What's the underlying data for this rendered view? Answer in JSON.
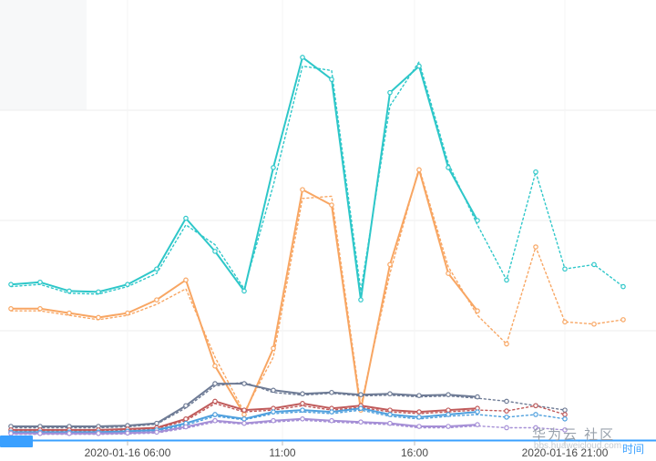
{
  "chart_data": {
    "type": "line",
    "title": "",
    "xlabel": "时间",
    "ylabel": "",
    "grid": true,
    "legend_visible": false,
    "x_axis": {
      "date": "2020-01-16",
      "ticks": [
        {
          "hour": 6,
          "label": "2020-01-16 06:00"
        },
        {
          "hour": 11,
          "label": "11:00"
        },
        {
          "hour": 16,
          "label": "16:00"
        },
        {
          "hour": 21,
          "label": "2020-01-16 21:00"
        }
      ]
    },
    "y_axis": {
      "range": [
        0,
        100
      ],
      "labels_visible": false
    },
    "x_sets": {
      "actual": [
        2,
        3,
        4,
        5,
        6,
        7,
        8,
        9,
        10,
        11,
        12,
        13,
        14,
        15,
        16,
        17,
        18
      ],
      "forecast": [
        2,
        3,
        4,
        5,
        6,
        7,
        8,
        9,
        10,
        11,
        12,
        13,
        14,
        15,
        16,
        17,
        18,
        19,
        20,
        21,
        22,
        23
      ],
      "forecast_short": [
        2,
        3,
        4,
        5,
        6,
        7,
        8,
        9,
        10,
        11,
        12,
        13,
        14,
        15,
        16,
        17,
        18,
        19,
        20,
        21
      ]
    },
    "series": [
      {
        "id": "teal_dotted",
        "color": "#2ec7c9",
        "style": "dotted",
        "x_set": "forecast",
        "markers": true,
        "markers_from_hour": 18.5,
        "values": [
          35,
          35.5,
          33.5,
          33.3,
          35,
          38,
          49,
          44.5,
          34.5,
          58,
          85,
          84,
          34,
          76,
          86,
          63,
          49,
          36.5,
          61,
          39,
          40,
          35
        ]
      },
      {
        "id": "teal_solid",
        "color": "#2ec7c9",
        "style": "solid",
        "x_set": "actual",
        "markers": true,
        "values": [
          35.5,
          36,
          34,
          33.8,
          35.5,
          39,
          50.5,
          43,
          34,
          62,
          87,
          82,
          32,
          79,
          85,
          62,
          50
        ]
      },
      {
        "id": "orange_dotted",
        "color": "#f8a663",
        "style": "dotted",
        "x_set": "forecast",
        "markers": true,
        "markers_from_hour": 18.5,
        "values": [
          29.5,
          29.5,
          28.5,
          27.5,
          28.5,
          31,
          34.5,
          19,
          6.5,
          19,
          55,
          55.5,
          8,
          38,
          62,
          39.5,
          28.5,
          22,
          44,
          27,
          26.5,
          27.5
        ]
      },
      {
        "id": "orange_solid",
        "color": "#f8a663",
        "style": "solid",
        "x_set": "actual",
        "markers": true,
        "values": [
          30,
          30,
          29,
          28,
          29,
          32,
          36.5,
          17,
          6,
          21,
          57,
          53.5,
          7,
          40,
          61.5,
          38,
          29.5
        ]
      },
      {
        "id": "slate_dotted",
        "color": "#6e7b95",
        "style": "dotted",
        "x_set": "forecast_short",
        "markers": true,
        "markers_from_hour": 18.5,
        "values": [
          3,
          3,
          3,
          3,
          3.2,
          3.8,
          7.5,
          12.5,
          13.3,
          11,
          10.4,
          10.8,
          10.2,
          10.4,
          10,
          10.2,
          9.7,
          9,
          8,
          7
        ]
      },
      {
        "id": "slate_solid",
        "color": "#6e7b95",
        "style": "solid",
        "x_set": "actual",
        "markers": true,
        "values": [
          3.3,
          3.3,
          3.3,
          3.3,
          3.5,
          4,
          8,
          13,
          13,
          11.5,
          10.7,
          11,
          10.5,
          10.7,
          10.3,
          10.5,
          10
        ]
      },
      {
        "id": "red_dotted",
        "color": "#c05a5a",
        "style": "dotted",
        "x_set": "forecast_short",
        "markers": true,
        "markers_from_hour": 18.5,
        "values": [
          2.3,
          2.3,
          2.3,
          2.3,
          2.5,
          2.8,
          4.6,
          8.5,
          6.6,
          7,
          8,
          7,
          7.6,
          6.6,
          6.2,
          6.6,
          7,
          6.8,
          8,
          6
        ]
      },
      {
        "id": "red_solid",
        "color": "#c05a5a",
        "style": "solid",
        "x_set": "actual",
        "markers": true,
        "values": [
          2.5,
          2.5,
          2.5,
          2.5,
          2.7,
          3,
          5,
          9,
          7,
          7.4,
          8.5,
          7.4,
          8,
          7,
          6.6,
          7,
          7.4
        ]
      },
      {
        "id": "blue_dotted",
        "color": "#4e9fdd",
        "style": "dotted",
        "x_set": "forecast_short",
        "markers": true,
        "markers_from_hour": 18.5,
        "values": [
          1.8,
          1.8,
          1.8,
          1.8,
          2,
          2.3,
          3.6,
          5.6,
          4.8,
          6.2,
          6.6,
          6.2,
          7,
          5.6,
          5,
          5.6,
          6,
          5.4,
          6,
          5
        ]
      },
      {
        "id": "blue_solid",
        "color": "#4e9fdd",
        "style": "solid",
        "x_set": "actual",
        "markers": true,
        "values": [
          2,
          2,
          2,
          2,
          2.2,
          2.5,
          4,
          6,
          5,
          6.6,
          7,
          6.6,
          7.4,
          6,
          5.4,
          6,
          6.6
        ]
      },
      {
        "id": "purple_dotted",
        "color": "#a58fd6",
        "style": "dotted",
        "x_set": "forecast_short",
        "markers": true,
        "markers_from_hour": 18.5,
        "values": [
          1.5,
          1.5,
          1.5,
          1.5,
          1.6,
          1.8,
          2.9,
          4.3,
          3.8,
          4.3,
          4.7,
          4.3,
          4,
          3.7,
          3,
          3,
          3.4,
          3,
          3,
          2.5
        ]
      },
      {
        "id": "purple_solid",
        "color": "#a58fd6",
        "style": "solid",
        "x_set": "actual",
        "markers": true,
        "values": [
          1.7,
          1.7,
          1.7,
          1.7,
          1.8,
          2,
          3.2,
          4.6,
          4,
          4.6,
          5,
          4.6,
          4.3,
          4,
          3.3,
          3.3,
          3.7
        ]
      }
    ]
  },
  "x_axis_name": "时间",
  "watermark": {
    "brand": "华为云 社区",
    "url": "bbs.huaweicloud.com"
  },
  "colors": {
    "axis_blue": "#3aa0ff",
    "tick_label": "#4a4a4a",
    "gridline": "#ededed",
    "watermark_gray": "#99a2ac"
  }
}
